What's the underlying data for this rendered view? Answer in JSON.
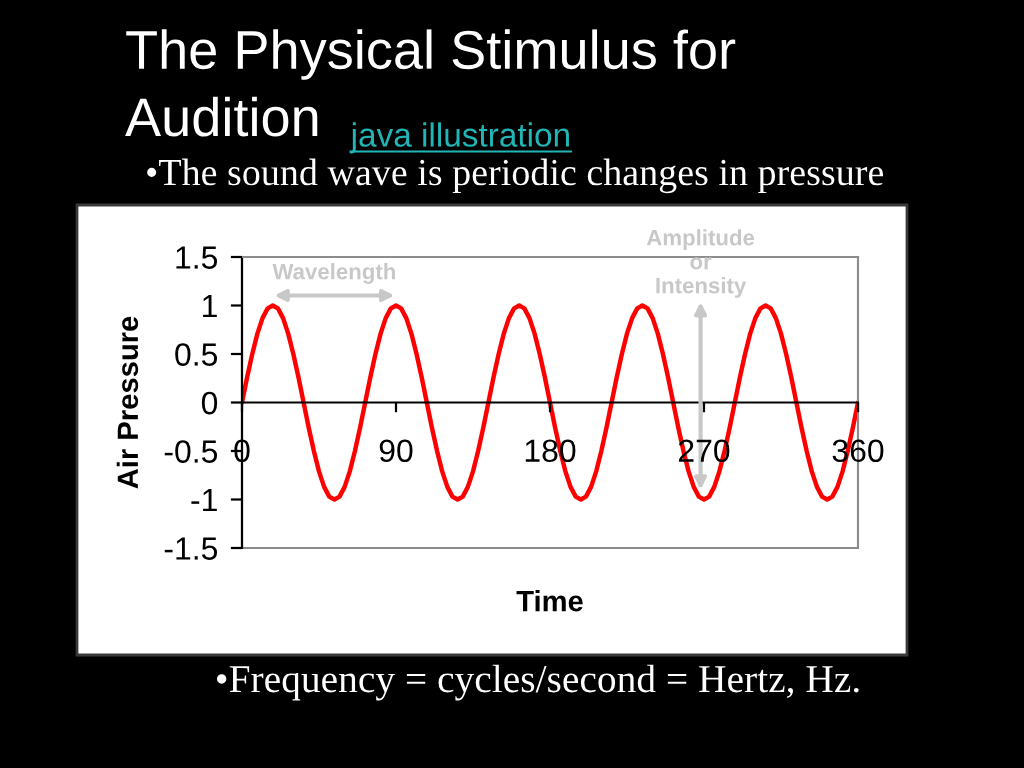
{
  "chart_data": {
    "type": "line",
    "title": "The Physical Stimulus for Audition",
    "subtitle": "java illustration",
    "xlabel": "Time",
    "ylabel": "Air Pressure",
    "x": [
      0,
      3,
      6,
      9,
      12,
      15,
      18,
      21,
      24,
      27,
      30,
      33,
      36,
      39,
      42,
      45,
      48,
      51,
      54,
      57,
      60,
      63,
      66,
      69,
      72,
      75,
      78,
      81,
      84,
      87,
      90,
      93,
      96,
      99,
      102,
      105,
      108,
      111,
      114,
      117,
      120,
      123,
      126,
      129,
      132,
      135,
      138,
      141,
      144,
      147,
      150,
      153,
      156,
      159,
      162,
      165,
      168,
      171,
      174,
      177,
      180,
      183,
      186,
      189,
      192,
      195,
      198,
      201,
      204,
      207,
      210,
      213,
      216,
      219,
      222,
      225,
      228,
      231,
      234,
      237,
      240,
      243,
      246,
      249,
      252,
      255,
      258,
      261,
      264,
      267,
      270,
      273,
      276,
      279,
      282,
      285,
      288,
      291,
      294,
      297,
      300,
      303,
      306,
      309,
      312,
      315,
      318,
      321,
      324,
      327,
      330,
      333,
      336,
      339,
      342,
      345,
      348,
      351,
      354,
      357,
      360
    ],
    "series": [
      {
        "color": "#ff0000",
        "values": [
          0,
          0.26,
          0.5,
          0.71,
          0.87,
          0.97,
          1,
          0.97,
          0.87,
          0.71,
          0.5,
          0.26,
          0,
          -0.26,
          -0.5,
          -0.71,
          -0.87,
          -0.97,
          -1,
          -0.97,
          -0.87,
          -0.71,
          -0.5,
          -0.26,
          0,
          0.26,
          0.5,
          0.71,
          0.87,
          0.97,
          1,
          0.97,
          0.87,
          0.71,
          0.5,
          0.26,
          0,
          -0.26,
          -0.5,
          -0.71,
          -0.87,
          -0.97,
          -1,
          -0.97,
          -0.87,
          -0.71,
          -0.5,
          -0.26,
          0,
          0.26,
          0.5,
          0.71,
          0.87,
          0.97,
          1,
          0.97,
          0.87,
          0.71,
          0.5,
          0.26,
          0,
          -0.26,
          -0.5,
          -0.71,
          -0.87,
          -0.97,
          -1,
          -0.97,
          -0.87,
          -0.71,
          -0.5,
          -0.26,
          0,
          0.26,
          0.5,
          0.71,
          0.87,
          0.97,
          1,
          0.97,
          0.87,
          0.71,
          0.5,
          0.26,
          0,
          -0.26,
          -0.5,
          -0.71,
          -0.87,
          -0.97,
          -1,
          -0.97,
          -0.87,
          -0.71,
          -0.5,
          -0.26,
          0,
          0.26,
          0.5,
          0.71,
          0.87,
          0.97,
          1,
          0.97,
          0.87,
          0.71,
          0.5,
          0.26,
          0,
          -0.26,
          -0.5,
          -0.71,
          -0.87,
          -0.97,
          -1,
          -0.97,
          -0.87,
          -0.71,
          -0.5,
          -0.26,
          0
        ]
      }
    ],
    "xlim": [
      0,
      360
    ],
    "xticks": [
      0,
      90,
      180,
      270,
      360
    ],
    "ylim": [
      -1.5,
      1.5
    ],
    "yticks": [
      -1.5,
      -1,
      -0.5,
      0,
      0.5,
      1,
      1.5
    ],
    "line_style": "solid",
    "grid": false,
    "annotations": [
      "•The sound wave is periodic changes in pressure",
      "Wavelength",
      {
        "text": "Amplitude or Intensity",
        "x": 268,
        "y": -0.9
      },
      "•Frequency = cycles/second = Hertz, Hz."
    ]
  }
}
